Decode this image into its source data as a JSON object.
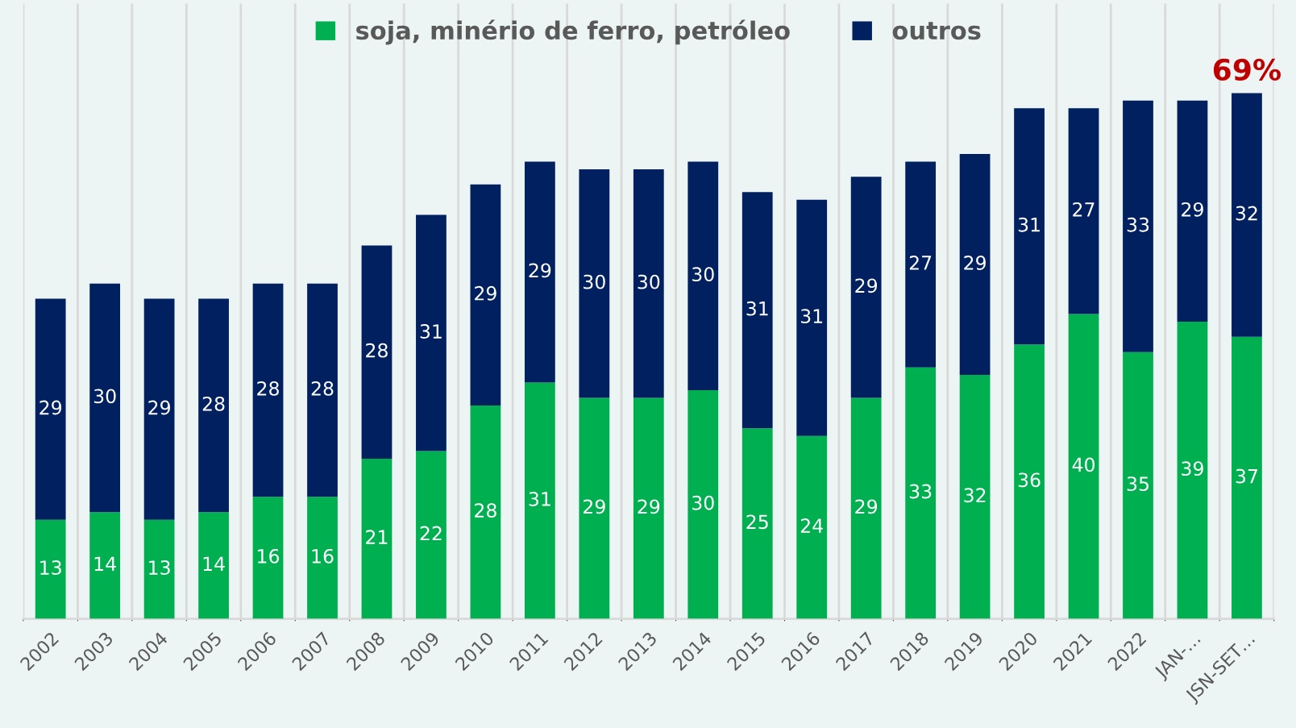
{
  "chart_data": {
    "type": "bar",
    "stacked": true,
    "data_labels": true,
    "grid": "x",
    "legend": "top",
    "categories": [
      "2002",
      "2003",
      "2004",
      "2005",
      "2006",
      "2007",
      "2008",
      "2009",
      "2010",
      "2011",
      "2012",
      "2013",
      "2014",
      "2015",
      "2016",
      "2017",
      "2018",
      "2019",
      "2020",
      "2021",
      "2022",
      "JAN-…",
      "JSN-SET…"
    ],
    "series": [
      {
        "name": "soja, minério de ferro, petróleo",
        "color": "#00b050",
        "values": [
          13,
          14,
          13,
          14,
          16,
          16,
          21,
          22,
          28,
          31,
          29,
          29,
          30,
          25,
          24,
          29,
          33,
          32,
          36,
          40,
          35,
          39,
          37
        ]
      },
      {
        "name": "outros",
        "color": "#002060",
        "values": [
          29,
          30,
          29,
          28,
          28,
          28,
          28,
          31,
          29,
          29,
          30,
          30,
          30,
          31,
          31,
          29,
          27,
          29,
          31,
          27,
          33,
          29,
          32
        ]
      }
    ],
    "annotations": [
      {
        "text": "69%",
        "x": "JSN-SET…",
        "y": 69
      }
    ]
  }
}
